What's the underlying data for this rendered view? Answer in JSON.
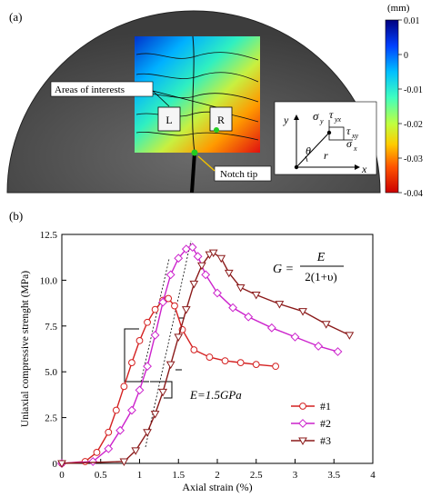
{
  "panel_a": {
    "panel_label": "(a)",
    "colorbar": {
      "unit": "(mm)",
      "ticks": [
        "0.01",
        "0",
        "-0.01",
        "-0.02",
        "-0.03",
        "-0.04"
      ],
      "colors": [
        "#00007f",
        "#0044ff",
        "#00c0ff",
        "#40ffc0",
        "#bfff40",
        "#ffd000",
        "#ff6000",
        "#e00000",
        "#7f0000"
      ]
    },
    "annotations": {
      "areas": "Areas of interests",
      "left_box": "L",
      "right_box": "R",
      "notch": "Notch tip"
    },
    "inset": {
      "y_axis": "y",
      "x_axis": "x",
      "sigma_y": "σ",
      "sigma_y_sub": "y",
      "tau_yx": "τ",
      "tau_yx_sub": "yx",
      "tau_xy": "τ",
      "tau_xy_sub": "xy",
      "sigma_x": "σ",
      "sigma_x_sub": "x",
      "theta": "θ",
      "r": "r"
    }
  },
  "panel_b": {
    "panel_label": "(b)",
    "formula": {
      "lhs": "G =",
      "numerator": "E",
      "denominator": "2(1+υ)"
    },
    "modulus_label": "E=1.5GPa"
  },
  "chart_data": {
    "type": "line",
    "xlabel": "Axial strain (%)",
    "ylabel": "Uniaxial compressive strenght (MPa)",
    "xlim": [
      0,
      4
    ],
    "ylim": [
      0,
      12.5
    ],
    "x_ticks": [
      "0",
      "0.5",
      "1",
      "1.5",
      "2",
      "2.5",
      "3",
      "3.5",
      "4"
    ],
    "y_ticks": [
      "0",
      "2.5",
      "5.0",
      "7.5",
      "10.0",
      "12.5"
    ],
    "legend_position": "bottom-right",
    "series": [
      {
        "name": "#1",
        "color": "#d42020",
        "marker": "circle",
        "x": [
          0,
          0.3,
          0.45,
          0.6,
          0.7,
          0.8,
          0.9,
          1.0,
          1.1,
          1.2,
          1.3,
          1.37,
          1.45,
          1.55,
          1.7,
          1.9,
          2.1,
          2.3,
          2.5,
          2.75
        ],
        "y": [
          0,
          0.1,
          0.6,
          1.7,
          2.9,
          4.2,
          5.5,
          6.7,
          7.7,
          8.4,
          8.9,
          9.0,
          8.6,
          7.3,
          6.2,
          5.8,
          5.6,
          5.5,
          5.4,
          5.3
        ]
      },
      {
        "name": "#2",
        "color": "#cc22cc",
        "marker": "diamond",
        "x": [
          0,
          0.4,
          0.6,
          0.75,
          0.9,
          1.0,
          1.1,
          1.2,
          1.3,
          1.4,
          1.5,
          1.6,
          1.68,
          1.75,
          1.85,
          2.0,
          2.2,
          2.4,
          2.7,
          3.0,
          3.3,
          3.55
        ],
        "y": [
          0,
          0.1,
          0.8,
          1.8,
          2.9,
          4.0,
          5.3,
          7.0,
          8.8,
          10.3,
          11.2,
          11.7,
          11.8,
          11.3,
          10.3,
          9.3,
          8.5,
          8.0,
          7.4,
          6.9,
          6.4,
          6.1
        ]
      },
      {
        "name": "#3",
        "color": "#8b1a1a",
        "marker": "triangle",
        "x": [
          0,
          0.8,
          0.95,
          1.1,
          1.2,
          1.3,
          1.4,
          1.5,
          1.6,
          1.7,
          1.8,
          1.9,
          1.95,
          2.05,
          2.15,
          2.3,
          2.5,
          2.8,
          3.1,
          3.4,
          3.7
        ],
        "y": [
          0,
          0.1,
          0.7,
          1.7,
          2.7,
          3.9,
          5.4,
          6.9,
          8.4,
          9.8,
          10.8,
          11.4,
          11.5,
          11.2,
          10.4,
          9.6,
          9.2,
          8.7,
          8.3,
          7.6,
          7.0
        ]
      }
    ]
  }
}
